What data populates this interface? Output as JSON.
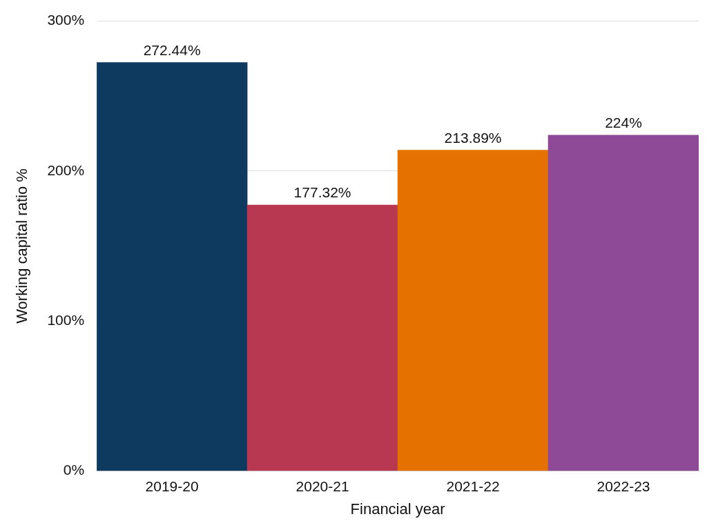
{
  "chart_data": {
    "type": "bar",
    "x_label": "Financial year",
    "y_label": "Working capital ratio %",
    "categories": [
      "2019-20",
      "2020-21",
      "2021-22",
      "2022-23"
    ],
    "values": [
      272.44,
      177.32,
      213.89,
      224
    ],
    "value_labels": [
      "272.44%",
      "177.32%",
      "213.89%",
      "224%"
    ],
    "colors": [
      "#0d3a5e",
      "#b83751",
      "#e57200",
      "#8f4a97"
    ],
    "ylim": [
      0,
      300
    ],
    "yticks": [
      {
        "value": 0,
        "label": "0%"
      },
      {
        "value": 100,
        "label": "100%"
      },
      {
        "value": 200,
        "label": "200%"
      },
      {
        "value": 300,
        "label": "300%"
      }
    ],
    "grid": true,
    "data_labels": true
  }
}
